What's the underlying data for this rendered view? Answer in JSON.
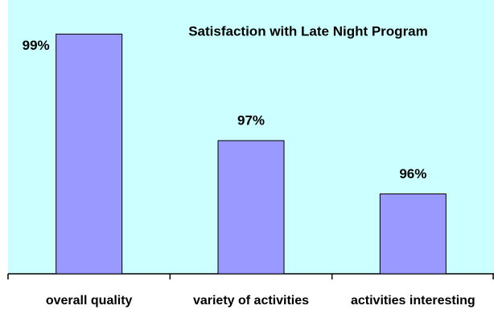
{
  "chart_data": {
    "type": "bar",
    "title": "Satisfaction with Late Night Program",
    "categories": [
      "overall quality",
      "variety of activities",
      "activities interesting"
    ],
    "values": [
      99,
      97,
      96
    ],
    "value_labels": [
      "99%",
      "97%",
      "96%"
    ],
    "color": "#9999ff",
    "background": "#ccffff",
    "ylim": [
      94.5,
      99.64
    ]
  }
}
